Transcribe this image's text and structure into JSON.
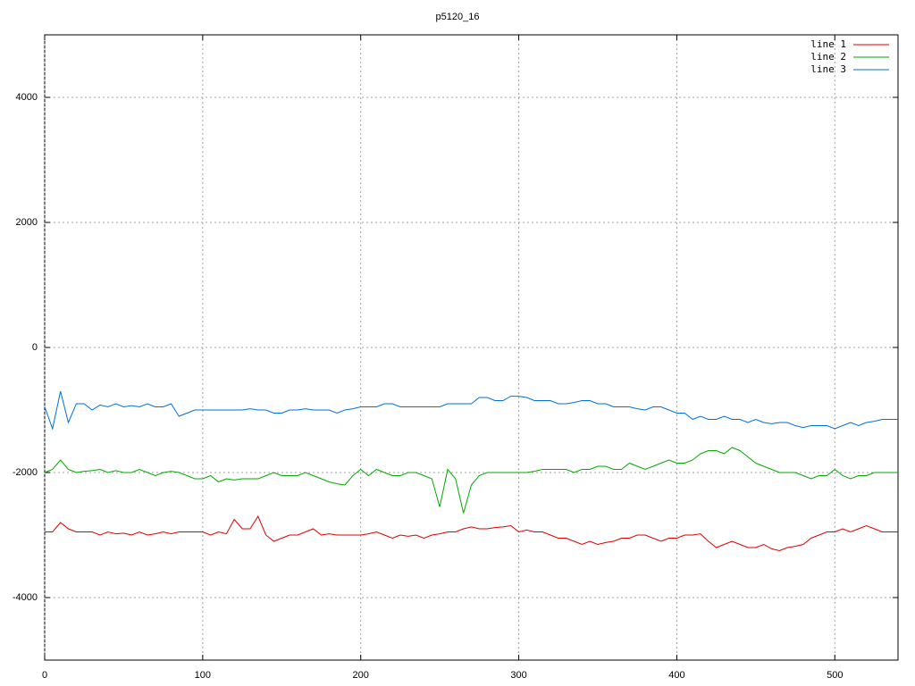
{
  "chart_data": {
    "type": "line",
    "title": "p5120_16",
    "x": [
      0,
      5,
      10,
      15,
      20,
      25,
      30,
      35,
      40,
      45,
      50,
      55,
      60,
      65,
      70,
      75,
      80,
      85,
      90,
      95,
      100,
      105,
      110,
      115,
      120,
      125,
      130,
      135,
      140,
      145,
      150,
      155,
      160,
      165,
      170,
      175,
      180,
      185,
      190,
      195,
      200,
      205,
      210,
      215,
      220,
      225,
      230,
      235,
      240,
      245,
      250,
      255,
      260,
      265,
      270,
      275,
      280,
      285,
      290,
      295,
      300,
      305,
      310,
      315,
      320,
      325,
      330,
      335,
      340,
      345,
      350,
      355,
      360,
      365,
      370,
      375,
      380,
      385,
      390,
      395,
      400,
      405,
      410,
      415,
      420,
      425,
      430,
      435,
      440,
      445,
      450,
      455,
      460,
      465,
      470,
      475,
      480,
      485,
      490,
      495,
      500,
      505,
      510,
      515,
      520,
      525,
      530,
      535,
      540
    ],
    "series": [
      {
        "name": "line 1",
        "color": "#dd0000",
        "values": [
          -2950,
          -2950,
          -2800,
          -2900,
          -2950,
          -2950,
          -2950,
          -3000,
          -2950,
          -2980,
          -2970,
          -3000,
          -2950,
          -3000,
          -2980,
          -2950,
          -2980,
          -2950,
          -2950,
          -2950,
          -2950,
          -3000,
          -2950,
          -2980,
          -2750,
          -2900,
          -2900,
          -2700,
          -3000,
          -3100,
          -3050,
          -3000,
          -3000,
          -2950,
          -2900,
          -3000,
          -2980,
          -3000,
          -3000,
          -3000,
          -3000,
          -2980,
          -2950,
          -3000,
          -3050,
          -3000,
          -3020,
          -3000,
          -3050,
          -3000,
          -2980,
          -2950,
          -2950,
          -2900,
          -2870,
          -2900,
          -2900,
          -2880,
          -2870,
          -2850,
          -2950,
          -2920,
          -2950,
          -2950,
          -3000,
          -3050,
          -3050,
          -3100,
          -3150,
          -3100,
          -3150,
          -3120,
          -3100,
          -3050,
          -3050,
          -3000,
          -3000,
          -3050,
          -3100,
          -3050,
          -3050,
          -3000,
          -3000,
          -2980,
          -3100,
          -3200,
          -3150,
          -3100,
          -3150,
          -3200,
          -3200,
          -3150,
          -3220,
          -3250,
          -3200,
          -3180,
          -3150,
          -3050,
          -3000,
          -2950,
          -2950,
          -2900,
          -2950,
          -2900,
          -2850,
          -2900,
          -2950,
          -2950,
          -2950
        ]
      },
      {
        "name": "line 2",
        "color": "#00aa00",
        "values": [
          -2000,
          -1950,
          -1800,
          -1950,
          -2000,
          -1980,
          -1970,
          -1950,
          -2000,
          -1970,
          -2000,
          -2000,
          -1950,
          -2000,
          -2050,
          -2000,
          -1980,
          -2000,
          -2050,
          -2100,
          -2100,
          -2050,
          -2150,
          -2100,
          -2120,
          -2100,
          -2100,
          -2100,
          -2050,
          -2000,
          -2050,
          -2050,
          -2050,
          -2000,
          -2050,
          -2100,
          -2150,
          -2180,
          -2200,
          -2050,
          -1950,
          -2050,
          -1950,
          -2000,
          -2050,
          -2050,
          -2000,
          -2000,
          -2050,
          -2100,
          -2550,
          -1950,
          -2100,
          -2650,
          -2200,
          -2050,
          -2000,
          -2000,
          -2000,
          -2000,
          -2000,
          -2000,
          -1980,
          -1950,
          -1950,
          -1950,
          -1950,
          -2000,
          -1950,
          -1950,
          -1900,
          -1900,
          -1950,
          -1950,
          -1850,
          -1900,
          -1950,
          -1900,
          -1850,
          -1800,
          -1850,
          -1850,
          -1800,
          -1700,
          -1650,
          -1650,
          -1700,
          -1600,
          -1650,
          -1750,
          -1850,
          -1900,
          -1950,
          -2000,
          -2000,
          -2000,
          -2050,
          -2100,
          -2050,
          -2050,
          -1950,
          -2050,
          -2100,
          -2050,
          -2050,
          -2000,
          -2000,
          -2000,
          -2000
        ]
      },
      {
        "name": "line 3",
        "color": "#0070dd",
        "values": [
          -950,
          -1300,
          -700,
          -1200,
          -900,
          -900,
          -1000,
          -920,
          -950,
          -900,
          -950,
          -930,
          -950,
          -900,
          -950,
          -950,
          -900,
          -1100,
          -1050,
          -1000,
          -1000,
          -1000,
          -1000,
          -1000,
          -1000,
          -1000,
          -980,
          -1000,
          -1000,
          -1050,
          -1050,
          -1000,
          -1000,
          -980,
          -1000,
          -1000,
          -1000,
          -1050,
          -1000,
          -980,
          -950,
          -950,
          -950,
          -900,
          -900,
          -950,
          -950,
          -950,
          -950,
          -950,
          -950,
          -900,
          -900,
          -900,
          -900,
          -800,
          -800,
          -850,
          -850,
          -780,
          -780,
          -800,
          -850,
          -850,
          -850,
          -900,
          -900,
          -880,
          -850,
          -850,
          -900,
          -900,
          -950,
          -950,
          -950,
          -980,
          -1000,
          -950,
          -950,
          -1000,
          -1050,
          -1050,
          -1150,
          -1100,
          -1150,
          -1150,
          -1100,
          -1150,
          -1150,
          -1200,
          -1150,
          -1200,
          -1220,
          -1200,
          -1200,
          -1250,
          -1280,
          -1250,
          -1250,
          -1250,
          -1300,
          -1250,
          -1200,
          -1250,
          -1200,
          -1180,
          -1150,
          -1150,
          -1150
        ]
      }
    ],
    "xlim": [
      0,
      540
    ],
    "ylim": [
      -5000,
      5000
    ],
    "xticks": [
      0,
      100,
      200,
      300,
      400,
      500
    ],
    "yticks": [
      -4000,
      -2000,
      0,
      2000,
      4000
    ],
    "grid": true,
    "legend": "upper-right"
  }
}
